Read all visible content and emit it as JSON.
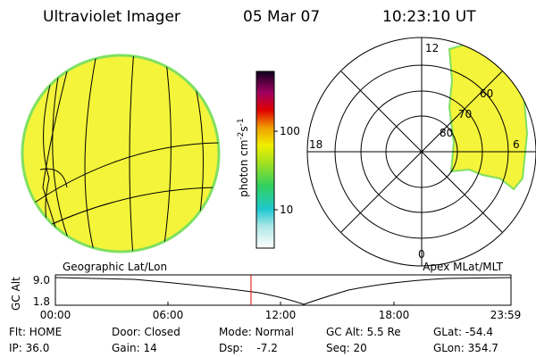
{
  "header": {
    "title": "Ultraviolet Imager",
    "date": "05 Mar 07",
    "time": "10:23:10 UT"
  },
  "colorbar": {
    "ticks": [
      "100",
      "10"
    ],
    "unit_parts": [
      "photon cm",
      "-2",
      "s",
      "-1"
    ]
  },
  "polar": {
    "clock_labels": [
      "12",
      "18",
      "6",
      "0"
    ],
    "ring_labels": [
      "60",
      "70",
      "80"
    ]
  },
  "projections": {
    "left": "Geographic Lat/Lon",
    "right": "Apex MLat/MLT"
  },
  "altitude_plot": {
    "y_label": "GC Alt",
    "yticks": [
      "9.0",
      "1.8"
    ],
    "xticks": [
      "00:00",
      "06:00",
      "12:00",
      "18:00",
      "23:59"
    ]
  },
  "status": {
    "rows": [
      [
        "Flt: HOME",
        "Door: Closed",
        "Mode: Normal",
        "GC Alt: 5.5 Re",
        "GLat: -54.4"
      ],
      [
        "IP: 36.0",
        "Gain: 14",
        "Dsp:    -7.2",
        "Seq: 20",
        "GLon: 354.7"
      ]
    ]
  }
}
